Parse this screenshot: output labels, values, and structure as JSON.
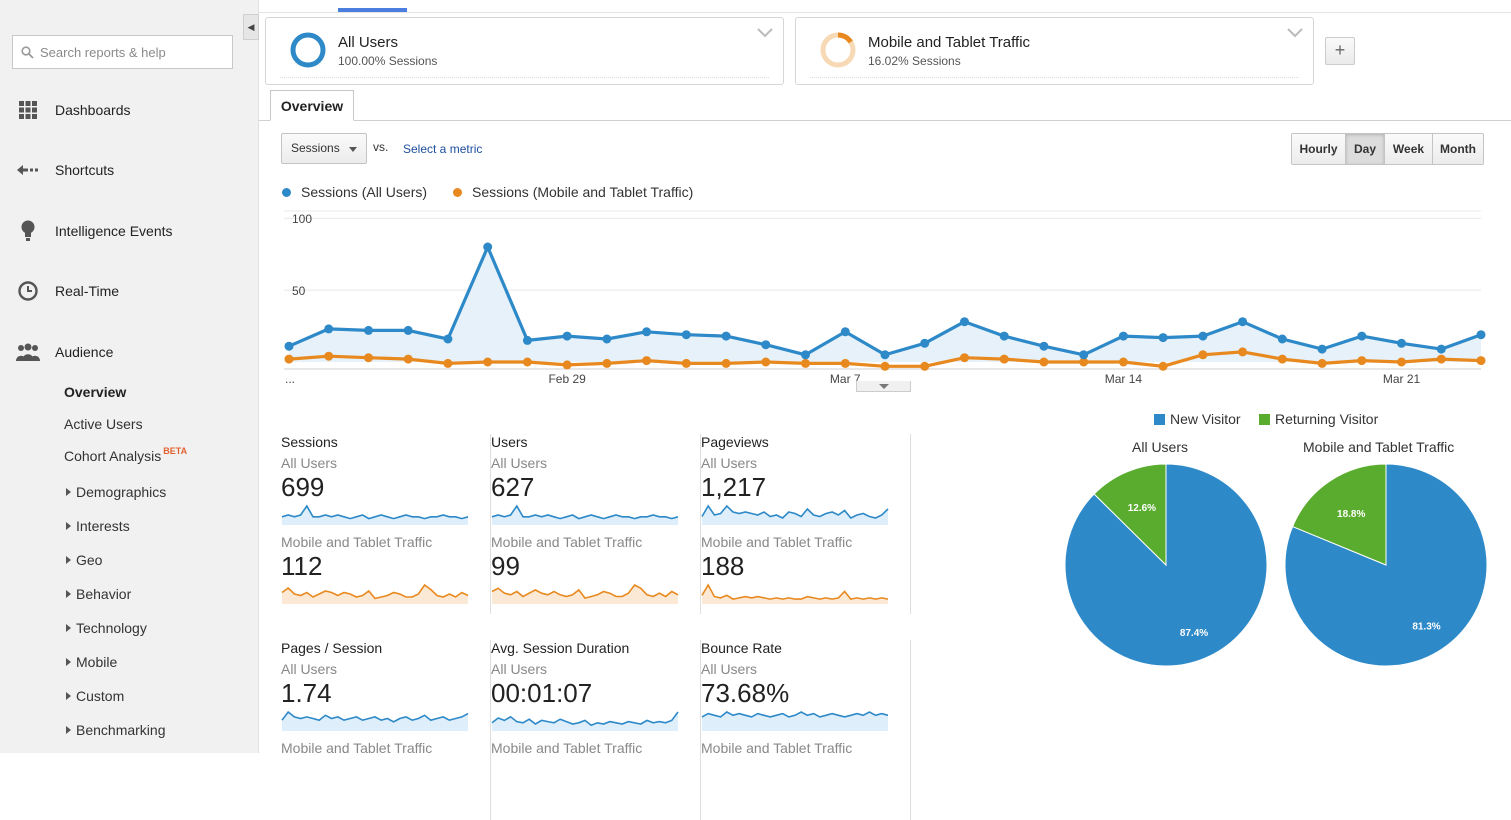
{
  "sidebar": {
    "search_placeholder": "Search reports & help",
    "main_items": [
      {
        "label": "Dashboards",
        "icon": "grid-icon"
      },
      {
        "label": "Shortcuts",
        "icon": "shortcut-arrow-icon"
      },
      {
        "label": "Intelligence Events",
        "icon": "lightbulb-icon"
      },
      {
        "label": "Real-Time",
        "icon": "clock-icon"
      },
      {
        "label": "Audience",
        "icon": "people-icon"
      }
    ],
    "audience_sub": [
      "Overview",
      "Active Users",
      "Cohort Analysis"
    ],
    "beta_label": "BETA",
    "audience_tree": [
      "Demographics",
      "Interests",
      "Geo",
      "Behavior",
      "Technology",
      "Mobile",
      "Custom",
      "Benchmarking"
    ]
  },
  "segments": [
    {
      "name": "All Users",
      "sessions_pct": "100.00% Sessions",
      "fraction": 1.0,
      "color": "#2d89c8"
    },
    {
      "name": "Mobile and Tablet Traffic",
      "sessions_pct": "16.02% Sessions",
      "fraction": 0.1602,
      "color": "#e8891f"
    }
  ],
  "tabs": {
    "overview": "Overview"
  },
  "controls": {
    "metric": "Sessions",
    "vs": "vs.",
    "select_metric": "Select a metric",
    "granularity": [
      "Hourly",
      "Day",
      "Week",
      "Month"
    ],
    "active_granularity": "Day"
  },
  "colors": {
    "all_users": "#2d89c8",
    "mobile": "#e8891f",
    "new_visitor": "#2d89c8",
    "returning_visitor": "#5aac2e"
  },
  "chart_data": [
    {
      "type": "line",
      "x_ticks": [
        "...",
        "Feb 29",
        "Mar 7",
        "Mar 14",
        "Mar 21"
      ],
      "y_ticks": [
        100,
        50
      ],
      "ylim": [
        0,
        105
      ],
      "series": [
        {
          "name": "Sessions (All Users)",
          "values": [
            11,
            23,
            22,
            22,
            16,
            80,
            15,
            18,
            16,
            21,
            19,
            18,
            12,
            5,
            21,
            5,
            13,
            28,
            18,
            11,
            5,
            18,
            17,
            18,
            28,
            16,
            9,
            18,
            13,
            9,
            19
          ]
        },
        {
          "name": "Sessions (Mobile and Tablet Traffic)",
          "values": [
            2,
            4,
            3,
            2,
            -1,
            0,
            0,
            -2,
            -1,
            1,
            -1,
            -1,
            0,
            -1,
            -1,
            -3,
            -3,
            3,
            2,
            0,
            0,
            0,
            -3,
            5,
            7,
            2,
            -1,
            1,
            0,
            2,
            1
          ]
        }
      ]
    },
    {
      "type": "pie",
      "title": "All Users",
      "categories": [
        "New Visitor",
        "Returning Visitor"
      ],
      "values": [
        87.4,
        12.6
      ],
      "labels": [
        "87.4%",
        "12.6%"
      ]
    },
    {
      "type": "pie",
      "title": "Mobile and Tablet Traffic",
      "categories": [
        "New Visitor",
        "Returning Visitor"
      ],
      "values": [
        81.3,
        18.8
      ],
      "labels": [
        "81.3%",
        "18.8%"
      ]
    }
  ],
  "scorecards": [
    {
      "title": "Sessions",
      "seg1": "All Users",
      "v1": "699",
      "seg2": "Mobile and Tablet Traffic",
      "v2": "112",
      "spark1": [
        4,
        5,
        4,
        5,
        10,
        4,
        4,
        5,
        4,
        5,
        4,
        3,
        4,
        5,
        3,
        4,
        5,
        4,
        3,
        4,
        5,
        4,
        4,
        3,
        4,
        4,
        5,
        4,
        4,
        3,
        4
      ],
      "spark2": [
        7,
        10,
        6,
        5,
        7,
        4,
        6,
        8,
        7,
        5,
        7,
        6,
        4,
        5,
        8,
        3,
        4,
        5,
        7,
        6,
        4,
        4,
        6,
        12,
        9,
        5,
        4,
        6,
        4,
        7,
        5
      ]
    },
    {
      "title": "Users",
      "seg1": "All Users",
      "v1": "627",
      "seg2": "Mobile and Tablet Traffic",
      "v2": "99",
      "spark1": [
        4,
        5,
        4,
        5,
        10,
        4,
        4,
        5,
        4,
        5,
        4,
        3,
        4,
        5,
        3,
        4,
        5,
        4,
        3,
        4,
        5,
        4,
        4,
        3,
        4,
        4,
        5,
        4,
        4,
        3,
        4
      ],
      "spark2": [
        7,
        9,
        6,
        5,
        7,
        4,
        6,
        8,
        6,
        5,
        7,
        5,
        4,
        5,
        8,
        3,
        4,
        5,
        7,
        6,
        4,
        4,
        6,
        11,
        9,
        5,
        4,
        6,
        4,
        7,
        5
      ]
    },
    {
      "title": "Pageviews",
      "seg1": "All Users",
      "v1": "1,217",
      "seg2": "Mobile and Tablet Traffic",
      "v2": "188",
      "spark1": [
        5,
        12,
        6,
        7,
        12,
        8,
        7,
        8,
        7,
        6,
        8,
        5,
        6,
        4,
        8,
        7,
        5,
        10,
        6,
        5,
        7,
        8,
        6,
        9,
        4,
        6,
        7,
        5,
        4,
        6,
        10
      ],
      "spark2": [
        6,
        14,
        5,
        4,
        6,
        3,
        4,
        5,
        4,
        5,
        4,
        3,
        4,
        3,
        4,
        3,
        3,
        5,
        4,
        3,
        4,
        3,
        4,
        9,
        3,
        4,
        3,
        4,
        3,
        4,
        3
      ]
    },
    {
      "title": "Pages / Session",
      "seg1": "All Users",
      "v1": "1.74",
      "seg2": "Mobile and Tablet Traffic",
      "v2": "",
      "spark1": [
        6,
        11,
        8,
        7,
        8,
        7,
        6,
        9,
        7,
        8,
        6,
        7,
        8,
        6,
        7,
        8,
        6,
        7,
        5,
        7,
        8,
        6,
        7,
        9,
        6,
        7,
        8,
        6,
        7,
        8,
        10
      ],
      "spark2": []
    },
    {
      "title": "Avg. Session Duration",
      "seg1": "All Users",
      "v1": "00:01:07",
      "seg2": "Mobile and Tablet Traffic",
      "v2": "",
      "spark1": [
        6,
        10,
        8,
        11,
        7,
        6,
        9,
        5,
        8,
        7,
        6,
        9,
        7,
        5,
        6,
        8,
        4,
        6,
        5,
        7,
        6,
        5,
        7,
        6,
        5,
        8,
        6,
        7,
        6,
        8,
        15
      ],
      "spark2": []
    },
    {
      "title": "Bounce Rate",
      "seg1": "All Users",
      "v1": "73.68%",
      "seg2": "Mobile and Tablet Traffic",
      "v2": "",
      "spark1": [
        8,
        10,
        9,
        8,
        11,
        9,
        10,
        9,
        8,
        10,
        9,
        8,
        9,
        10,
        8,
        9,
        11,
        9,
        10,
        8,
        9,
        10,
        9,
        8,
        9,
        10,
        9,
        11,
        9,
        10,
        9
      ],
      "spark2": []
    }
  ],
  "pie_legend": {
    "new": "New Visitor",
    "returning": "Returning Visitor"
  }
}
